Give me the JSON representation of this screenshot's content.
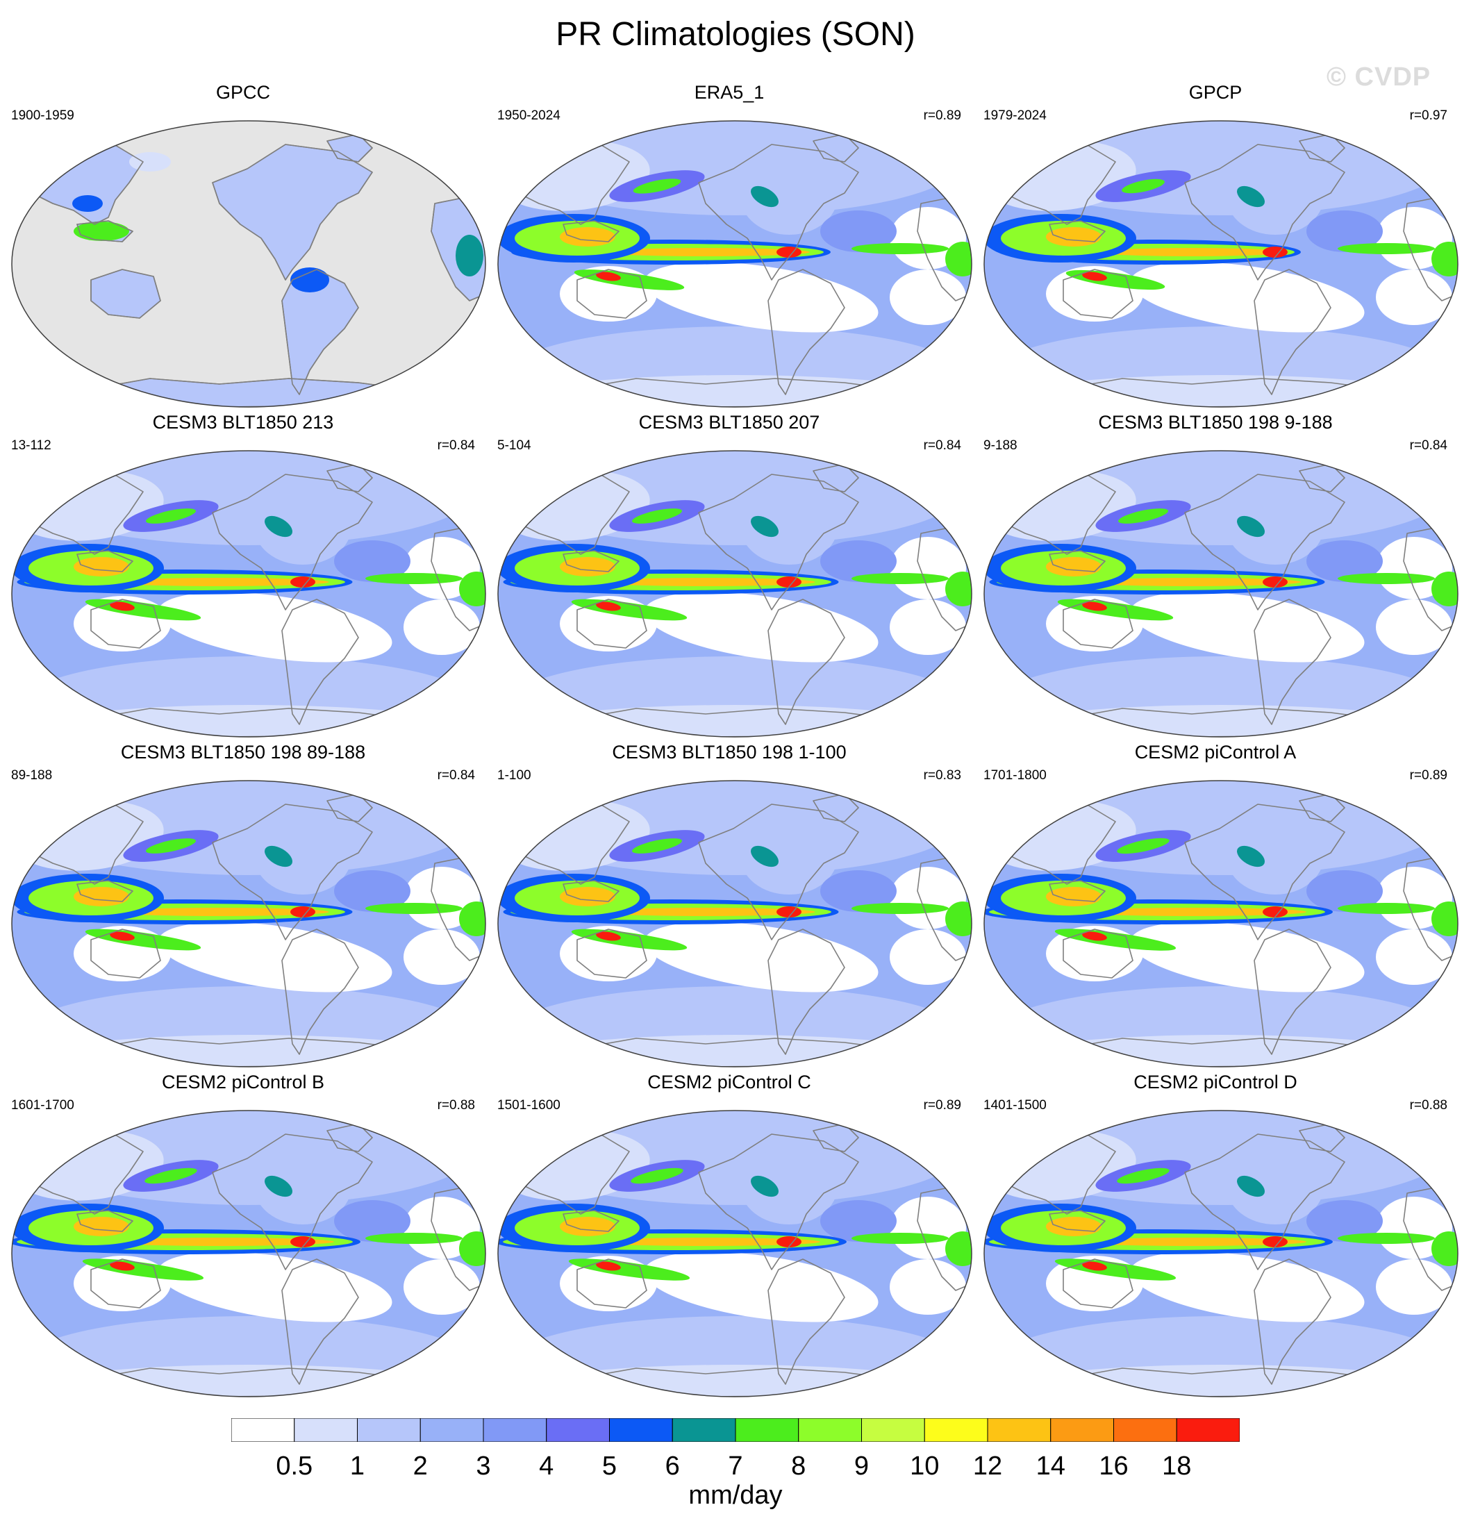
{
  "title": "PR Climatologies (SON)",
  "watermark": "© CVDP",
  "colors": {
    "ocean_gpcc_missing": "#e5e5e5",
    "coast": "#7f7f7f",
    "bins": [
      "#ffffff",
      "#d7e0fb",
      "#b6c6fa",
      "#98b1f8",
      "#8199f6",
      "#6a6ef5",
      "#0c59f5",
      "#0a9593",
      "#4ced1d",
      "#8dfd2a",
      "#c6fd40",
      "#fdfd1b",
      "#fdc314",
      "#fc9b13",
      "#fc6f10",
      "#fa1c0e"
    ]
  },
  "panels": [
    {
      "id": "gpcc",
      "title": "GPCC",
      "period": "1900-1959",
      "r": "",
      "land_only": true,
      "scale": 1.0
    },
    {
      "id": "era5",
      "title": "ERA5_1",
      "period": "1950-2024",
      "r": "r=0.89",
      "land_only": false,
      "scale": 1.0
    },
    {
      "id": "gpcp",
      "title": "GPCP",
      "period": "1979-2024",
      "r": "r=0.97",
      "land_only": false,
      "scale": 0.9
    },
    {
      "id": "b213",
      "title": "CESM3 BLT1850 213",
      "period": "13-112",
      "r": "r=0.84",
      "land_only": false,
      "scale": 1.05
    },
    {
      "id": "b207",
      "title": "CESM3 BLT1850 207",
      "period": "5-104",
      "r": "r=0.84",
      "land_only": false,
      "scale": 1.05
    },
    {
      "id": "b198a",
      "title": "CESM3 BLT1850 198 9-188",
      "period": "9-188",
      "r": "r=0.84",
      "land_only": false,
      "scale": 1.05
    },
    {
      "id": "b198b",
      "title": "CESM3 BLT1850 198 89-188",
      "period": "89-188",
      "r": "r=0.84",
      "land_only": false,
      "scale": 1.05
    },
    {
      "id": "b198c",
      "title": "CESM3 BLT1850 198 1-100",
      "period": "1-100",
      "r": "r=0.83",
      "land_only": false,
      "scale": 1.05
    },
    {
      "id": "picA",
      "title": "CESM2 piControl A",
      "period": "1701-1800",
      "r": "r=0.89",
      "land_only": false,
      "scale": 1.1
    },
    {
      "id": "picB",
      "title": "CESM2 piControl B",
      "period": "1601-1700",
      "r": "r=0.88",
      "land_only": false,
      "scale": 1.1
    },
    {
      "id": "picC",
      "title": "CESM2 piControl C",
      "period": "1501-1600",
      "r": "r=0.89",
      "land_only": false,
      "scale": 1.1
    },
    {
      "id": "picD",
      "title": "CESM2 piControl D",
      "period": "1401-1500",
      "r": "r=0.88",
      "land_only": false,
      "scale": 1.1
    }
  ],
  "chart_data": {
    "type": "heatmap",
    "projection": "robinson",
    "variable": "PR",
    "season": "SON",
    "central_longitude": 180,
    "colorbar": {
      "levels": [
        0.5,
        1,
        2,
        3,
        4,
        5,
        6,
        7,
        8,
        9,
        10,
        12,
        14,
        16,
        18
      ],
      "tick_labels": [
        "0.5",
        "1",
        "2",
        "3",
        "4",
        "5",
        "6",
        "7",
        "8",
        "9",
        "10",
        "12",
        "14",
        "16",
        "18"
      ],
      "unit": "mm/day"
    },
    "layout": {
      "rows": 4,
      "cols": 3
    }
  }
}
